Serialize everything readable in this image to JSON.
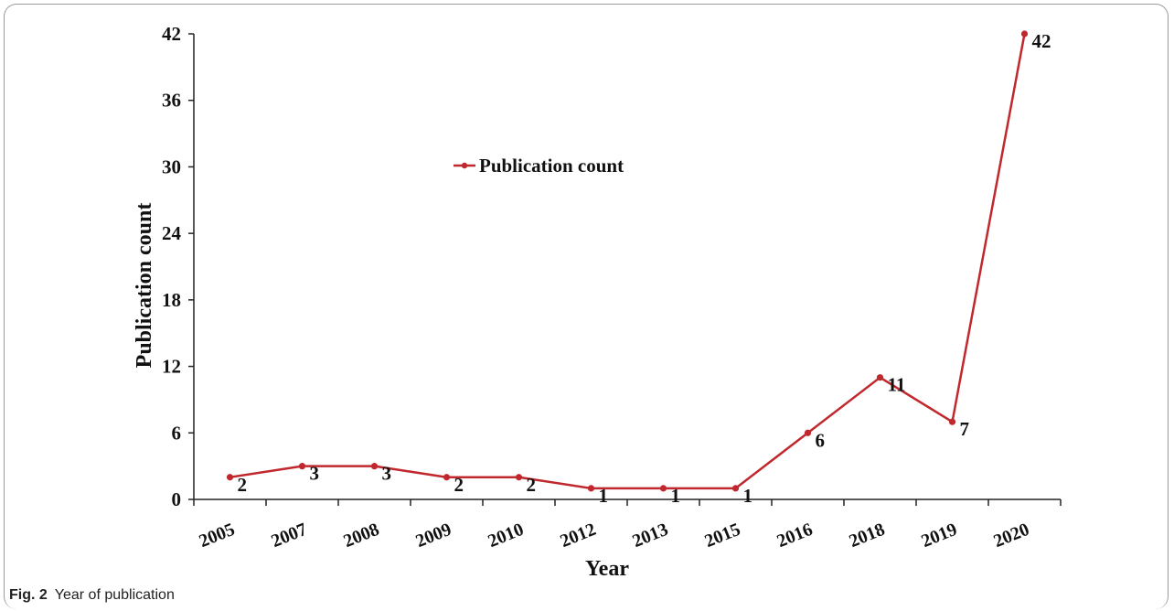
{
  "caption": {
    "label": "Fig. 2",
    "text": "Year of publication"
  },
  "chart_data": {
    "type": "line",
    "xlabel": "Year",
    "ylabel": "Publication count",
    "categories": [
      "2005",
      "2007",
      "2008",
      "2009",
      "2010",
      "2012",
      "2013",
      "2015",
      "2016",
      "2018",
      "2019",
      "2020"
    ],
    "series": [
      {
        "name": "Publication count",
        "values": [
          2,
          3,
          3,
          2,
          2,
          1,
          1,
          1,
          6,
          11,
          7,
          42
        ]
      }
    ],
    "ylim": [
      0,
      42
    ],
    "yticks": [
      0,
      6,
      12,
      18,
      24,
      30,
      36,
      42
    ],
    "grid": false,
    "legend": "top-center",
    "colors": {
      "line": "#c0282d",
      "axis": "#222222"
    }
  }
}
